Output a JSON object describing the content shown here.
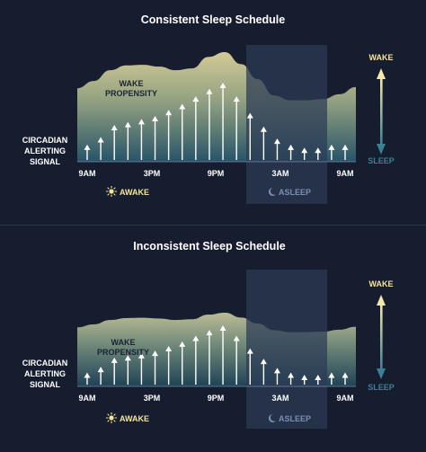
{
  "colors": {
    "background": "#161d2f",
    "wake": "#f4e9a8",
    "sleep": "#3d7f93",
    "asleep_band": "#2b3a54",
    "text": "#ffffff",
    "awake_label": "#f6e49a",
    "asleep_label": "#7c8fb0"
  },
  "panels": [
    {
      "title": "Consistent Sleep Schedule",
      "curve_label_line1": "WAKE",
      "curve_label_line2": "PROPENSITY",
      "signal_label_line1": "CIRCADIAN",
      "signal_label_line2": "ALERTING",
      "signal_label_line3": "SIGNAL",
      "x_ticks": [
        "9AM",
        "3PM",
        "9PM",
        "3AM",
        "9AM"
      ],
      "wake_label": "WAKE",
      "sleep_label": "SLEEP",
      "awake_legend": "AWAKE",
      "asleep_legend": "ASLEEP",
      "wake_propensity": [
        0.4,
        0.52,
        0.7,
        0.78,
        0.79,
        0.76,
        0.7,
        0.73,
        0.92,
        1.0,
        0.8,
        0.55,
        0.28,
        0.2,
        0.2,
        0.22,
        0.3,
        0.42
      ],
      "alerting_signal": [
        0.18,
        0.28,
        0.44,
        0.48,
        0.52,
        0.56,
        0.64,
        0.72,
        0.82,
        0.92,
        1.0,
        0.82,
        0.6,
        0.42,
        0.26,
        0.18,
        0.14,
        0.14,
        0.18,
        0.18
      ]
    },
    {
      "title": "Inconsistent Sleep Schedule",
      "curve_label_line1": "WAKE",
      "curve_label_line2": "PROPENSITY",
      "signal_label_line1": "CIRCADIAN",
      "signal_label_line2": "ALERTING",
      "signal_label_line3": "SIGNAL",
      "x_ticks": [
        "9AM",
        "3PM",
        "9PM",
        "3AM",
        "9AM"
      ],
      "wake_label": "WAKE",
      "sleep_label": "SLEEP",
      "awake_legend": "AWAKE",
      "asleep_legend": "ASLEEP",
      "wake_propensity": [
        0.4,
        0.52,
        0.7,
        0.78,
        0.79,
        0.76,
        0.7,
        0.73,
        0.92,
        1.0,
        0.8,
        0.55,
        0.28,
        0.2,
        0.2,
        0.22,
        0.3,
        0.42
      ],
      "alerting_signal": [
        0.18,
        0.28,
        0.44,
        0.48,
        0.52,
        0.56,
        0.64,
        0.72,
        0.82,
        0.92,
        1.0,
        0.82,
        0.6,
        0.42,
        0.26,
        0.18,
        0.14,
        0.14,
        0.18,
        0.18
      ]
    }
  ]
}
